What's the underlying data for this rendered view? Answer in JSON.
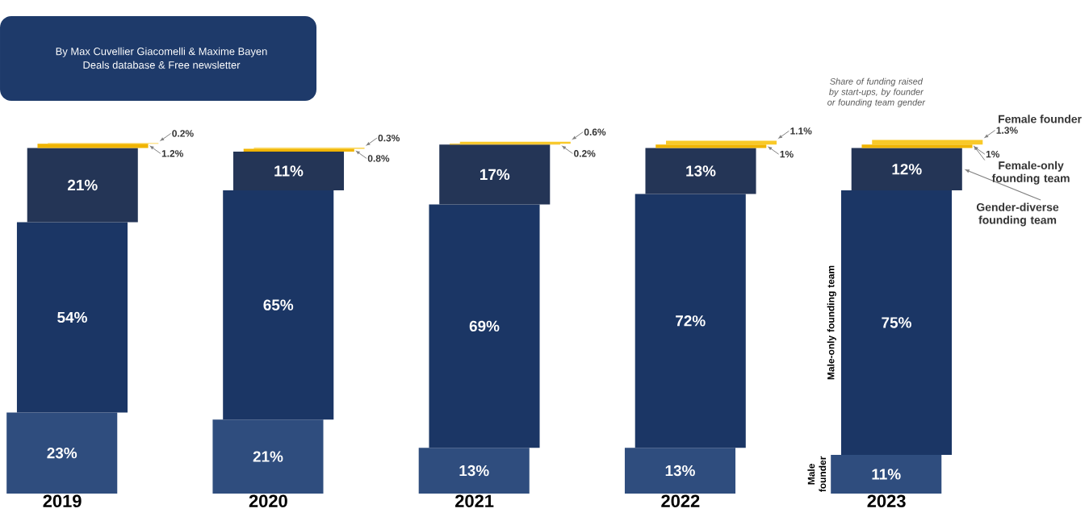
{
  "chart_data": {
    "type": "bar",
    "stacked": true,
    "categories": [
      "2019",
      "2020",
      "2021",
      "2022",
      "2023"
    ],
    "series": [
      {
        "name": "Male founder",
        "color": "#2f4d7e",
        "values": [
          23,
          21,
          13,
          13,
          11
        ],
        "value_labels": [
          "23%",
          "21%",
          "13%",
          "13%",
          "11%"
        ]
      },
      {
        "name": "Male-only founding team",
        "color": "#1b3665",
        "values": [
          54,
          65,
          69,
          72,
          75
        ],
        "value_labels": [
          "54%",
          "65%",
          "69%",
          "72%",
          "75%"
        ]
      },
      {
        "name": "Gender-diverse founding team",
        "color": "#243556",
        "values": [
          21,
          11,
          17,
          13,
          12
        ],
        "value_labels": [
          "21%",
          "11%",
          "17%",
          "13%",
          "12%"
        ]
      },
      {
        "name": "Female-only founding team",
        "color": "#f0b400",
        "values": [
          1.2,
          0.8,
          0.2,
          1,
          1
        ],
        "value_labels": [
          "1.2%",
          "0.8%",
          "0.2%",
          "1%",
          "1%"
        ]
      },
      {
        "name": "Female founder",
        "color": "#f9c928",
        "values": [
          0.2,
          0.3,
          0.6,
          1.1,
          1.3
        ],
        "value_labels": [
          "0.2%",
          "0.3%",
          "0.6%",
          "1.1%",
          "1.3%"
        ]
      }
    ],
    "annotations": [
      "By Max Cuvellier Giacomelli & Maxime Bayen",
      "Deals database & Free newsletter",
      "Share of funding raised by start-ups, by founder or founding team gender"
    ]
  }
}
